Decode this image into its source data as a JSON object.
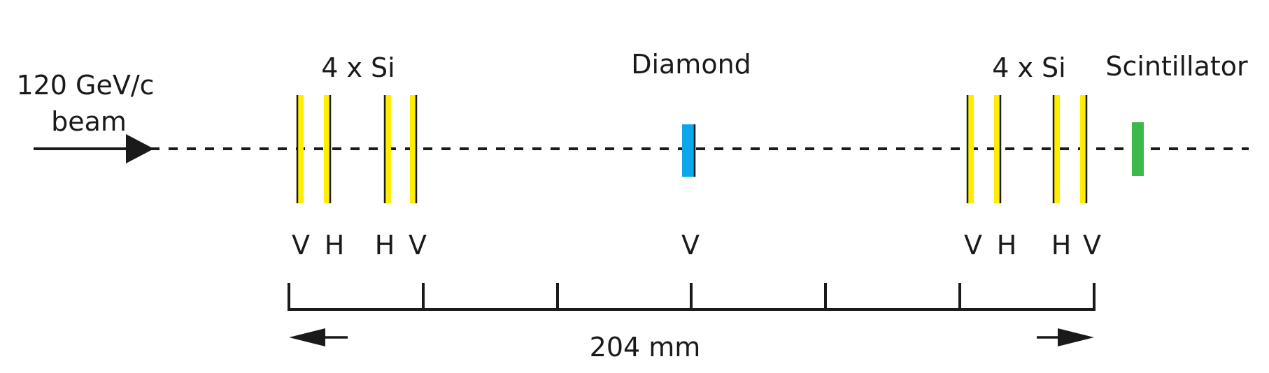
{
  "beam": {
    "line1": "120 GeV/c",
    "line2": "beam"
  },
  "upstream_group_label": "4 x Si",
  "diamond_label": "Diamond",
  "downstream_group_label": "4 x Si",
  "scintillator_label": "Scintillator",
  "upstream_planes": [
    {
      "orientation": "V"
    },
    {
      "orientation": "H"
    },
    {
      "orientation": "H"
    },
    {
      "orientation": "V"
    }
  ],
  "diamond_plane": {
    "orientation": "V"
  },
  "downstream_planes": [
    {
      "orientation": "V"
    },
    {
      "orientation": "H"
    },
    {
      "orientation": "H"
    },
    {
      "orientation": "V"
    }
  ],
  "scale": {
    "label": "204 mm",
    "divisions": 6
  },
  "colors": {
    "silicon": "#ffee00",
    "diamond": "#0aa8e8",
    "scintillator": "#3cb94a",
    "ink": "#1a1a1a"
  }
}
